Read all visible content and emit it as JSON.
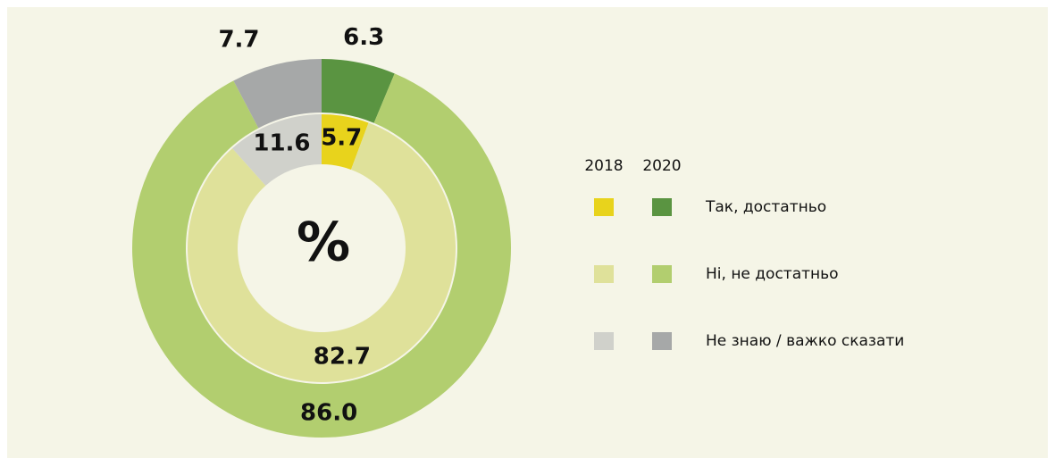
{
  "chart_data": {
    "type": "donut",
    "center_label": "%",
    "categories": [
      "Так, достатньо",
      "Ні, не достатньо",
      "Не знаю / важко сказати"
    ],
    "series": [
      {
        "name": "2018",
        "colors": [
          "#e8d31c",
          "#dfe19a",
          "#d0d1cb"
        ],
        "values": [
          5.7,
          82.7,
          11.6
        ]
      },
      {
        "name": "2020",
        "colors": [
          "#5a9441",
          "#b2ce6f",
          "#a6a8a8"
        ],
        "values": [
          6.3,
          86,
          7.7
        ],
        "value_labels": [
          "6.3",
          "86.0",
          "7.7"
        ]
      }
    ]
  }
}
